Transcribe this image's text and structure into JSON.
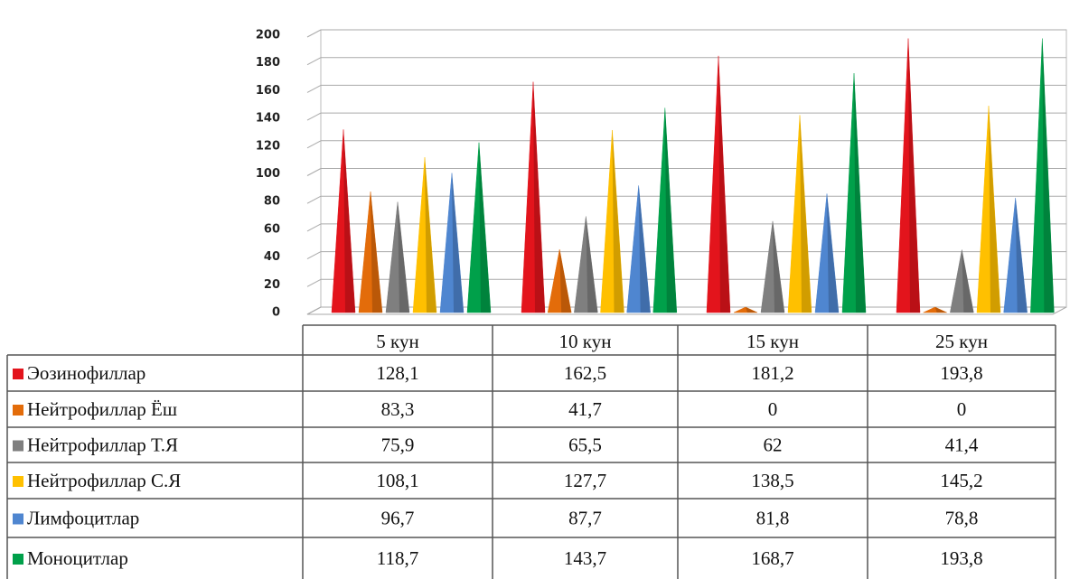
{
  "chart_data": {
    "type": "cone",
    "categories": [
      "5 кун",
      "10 кун",
      "15 кун",
      "25 кун"
    ],
    "series": [
      {
        "name": "Эозинофиллар",
        "color": "#e3141c",
        "values": [
          128.1,
          162.5,
          181.2,
          193.8
        ],
        "value_labels": [
          "128,1",
          "162,5",
          "181,2",
          "193,8"
        ]
      },
      {
        "name": "Нейтрофиллар Ёш",
        "color": "#e36c0a",
        "values": [
          83.3,
          41.7,
          0,
          0
        ],
        "value_labels": [
          "83,3",
          "41,7",
          "0",
          "0"
        ]
      },
      {
        "name": "Нейтрофиллар Т.Я",
        "color": "#7f7f7f",
        "values": [
          75.9,
          65.5,
          62,
          41.4
        ],
        "value_labels": [
          "75,9",
          "65,5",
          "62",
          "41,4"
        ]
      },
      {
        "name": "Нейтрофиллар С.Я",
        "color": "#ffc000",
        "values": [
          108.1,
          127.7,
          138.5,
          145.2
        ],
        "value_labels": [
          "108,1",
          "127,7",
          "138,5",
          "145,2"
        ]
      },
      {
        "name": "Лимфоцитлар",
        "color": "#4f86d0",
        "values": [
          96.7,
          87.7,
          81.8,
          78.8
        ],
        "value_labels": [
          "96,7",
          "87,7",
          "81,8",
          "78,8"
        ]
      },
      {
        "name": "Моноцитлар",
        "color": "#00a04a",
        "values": [
          118.7,
          143.7,
          168.7,
          193.8
        ],
        "value_labels": [
          "118,7",
          "143,7",
          "168,7",
          "193,8"
        ]
      }
    ],
    "ylim": [
      0,
      200
    ],
    "yticks": [
      0,
      20,
      40,
      60,
      80,
      100,
      120,
      140,
      160,
      180,
      200
    ],
    "grid": true
  }
}
